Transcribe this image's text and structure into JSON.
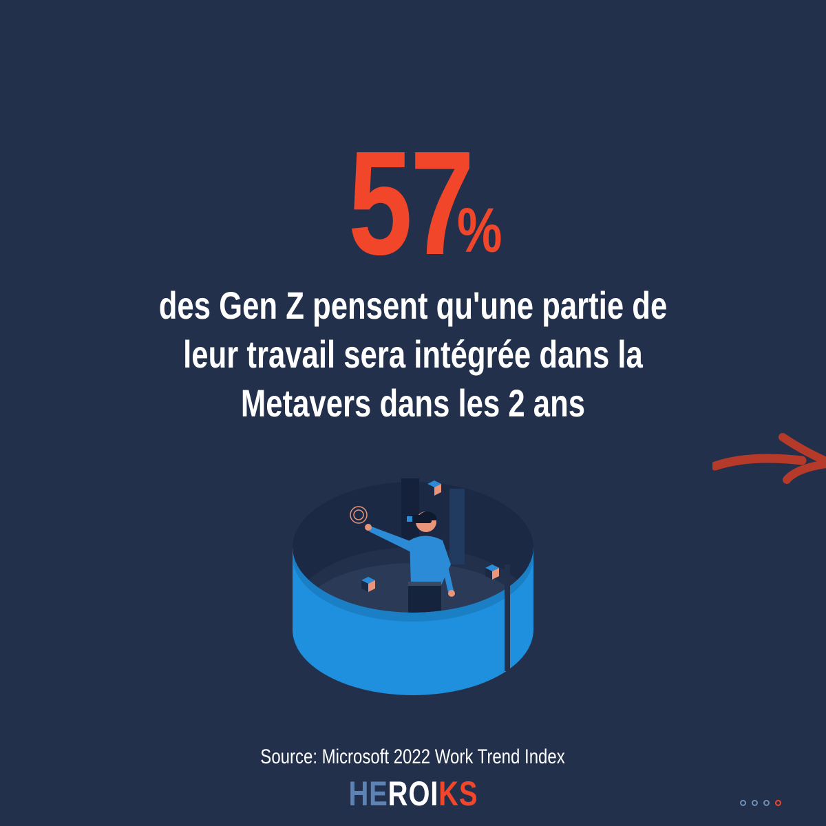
{
  "stat": {
    "value": "57",
    "unit": "%"
  },
  "headline": {
    "lines": [
      "des Gen Z pensent qu'une partie de",
      "leur travail sera intégrée dans la",
      "Metavers dans les 2 ans"
    ]
  },
  "source": "Source:  Microsoft 2022 Work Trend Index",
  "logo": {
    "part1": "HE",
    "part2": "ROI",
    "part3": "KS"
  },
  "pager": {
    "total": 4,
    "active_index": 3
  },
  "icons": {
    "illustration": "vr-person-in-cylinder-illustration",
    "next": "arrow-right-icon"
  },
  "colors": {
    "background": "#22304b",
    "accent": "#f2462b",
    "text": "#ffffff",
    "illustration_blue": "#1e90de",
    "arrow": "#b53a2a",
    "logo_blue": "#5c83b3"
  }
}
